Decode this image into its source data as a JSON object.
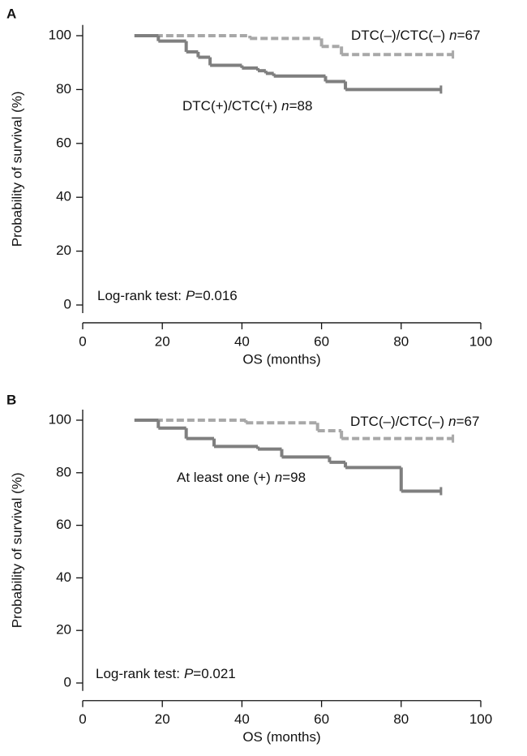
{
  "chart_data": [
    {
      "type": "line",
      "panel_label": "A",
      "xlabel": "OS (months)",
      "ylabel": "Probability of survival (%)",
      "xlim": [
        0,
        100
      ],
      "ylim": [
        -3,
        104
      ],
      "xticks": [
        0,
        20,
        40,
        60,
        80,
        100
      ],
      "yticks": [
        0,
        20,
        40,
        60,
        80,
        100
      ],
      "series": [
        {
          "label_parts": [
            "DTC(–)/CTC(–)",
            "n",
            "=67"
          ],
          "color": "#a8a8a8",
          "dashed": true,
          "x": [
            13,
            42,
            60,
            65,
            93
          ],
          "values": [
            100,
            99,
            96,
            93,
            93
          ]
        },
        {
          "label_parts": [
            "DTC(+)/CTC(+)",
            "n",
            "=88"
          ],
          "color": "#7f7f7f",
          "dashed": false,
          "x": [
            13,
            19,
            26,
            29,
            32,
            40,
            44,
            46,
            48,
            61,
            66,
            90
          ],
          "values": [
            100,
            98,
            94,
            92,
            89,
            88,
            87,
            86,
            85,
            83,
            80,
            80
          ]
        }
      ],
      "test_parts": [
        "Log-rank test:",
        "P",
        "=0.016"
      ]
    },
    {
      "type": "line",
      "panel_label": "B",
      "xlabel": "OS (months)",
      "ylabel": "Probability of survival (%)",
      "xlim": [
        0,
        100
      ],
      "ylim": [
        -3,
        104
      ],
      "xticks": [
        0,
        20,
        40,
        60,
        80,
        100
      ],
      "yticks": [
        0,
        20,
        40,
        60,
        80,
        100
      ],
      "series": [
        {
          "label_parts": [
            "DTC(–)/CTC(–)",
            "n",
            "=67"
          ],
          "color": "#a8a8a8",
          "dashed": true,
          "x": [
            13,
            41,
            59,
            65,
            93
          ],
          "values": [
            100,
            99,
            96,
            93,
            93
          ]
        },
        {
          "label_parts": [
            "At least one (+)",
            "n",
            "=98"
          ],
          "color": "#7f7f7f",
          "dashed": false,
          "x": [
            13,
            19,
            26,
            33,
            44,
            50,
            62,
            66,
            80,
            90
          ],
          "values": [
            100,
            97,
            93,
            90,
            89,
            86,
            84,
            82,
            73,
            73
          ]
        }
      ],
      "test_parts": [
        "Log-rank test:",
        "P",
        "=0.021"
      ]
    }
  ]
}
